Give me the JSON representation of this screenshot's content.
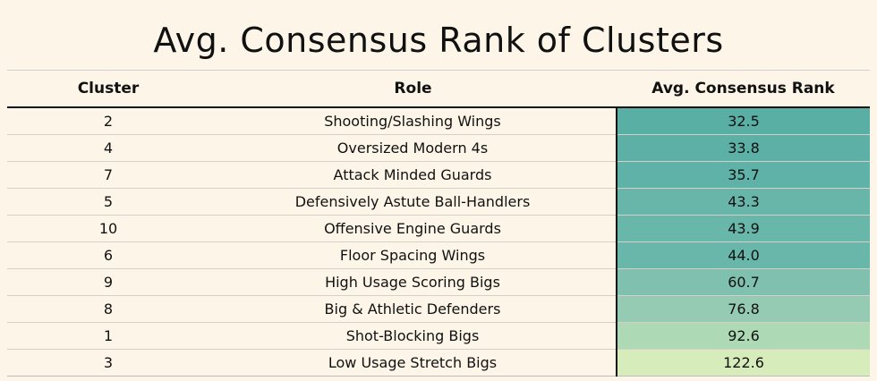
{
  "chart_data": {
    "type": "table",
    "title": "Avg. Consensus Rank of Clusters",
    "columns": [
      "Cluster",
      "Role",
      "Avg. Consensus Rank"
    ],
    "rows": [
      {
        "cluster": "2",
        "role": "Shooting/Slashing Wings",
        "rank": "32.5",
        "color": "#5aafa5"
      },
      {
        "cluster": "4",
        "role": "Oversized Modern 4s",
        "rank": "33.8",
        "color": "#5cb0a6"
      },
      {
        "cluster": "7",
        "role": "Attack Minded Guards",
        "rank": "35.7",
        "color": "#5fb2a7"
      },
      {
        "cluster": "5",
        "role": "Defensively Astute Ball-Handlers",
        "rank": "43.3",
        "color": "#68b6aa"
      },
      {
        "cluster": "10",
        "role": "Offensive Engine Guards",
        "rank": "43.9",
        "color": "#69b7ab"
      },
      {
        "cluster": "6",
        "role": "Floor Spacing Wings",
        "rank": "44.0",
        "color": "#69b7ab"
      },
      {
        "cluster": "9",
        "role": "High Usage Scoring Bigs",
        "rank": "60.7",
        "color": "#7fc0ae"
      },
      {
        "cluster": "8",
        "role": "Big & Athletic Defenders",
        "rank": "76.8",
        "color": "#95cbb2"
      },
      {
        "cluster": "1",
        "role": "Shot-Blocking Bigs",
        "rank": "92.6",
        "color": "#addab4"
      },
      {
        "cluster": "3",
        "role": "Low Usage Stretch Bigs",
        "rank": "122.6",
        "color": "#d6ecbb"
      }
    ]
  }
}
